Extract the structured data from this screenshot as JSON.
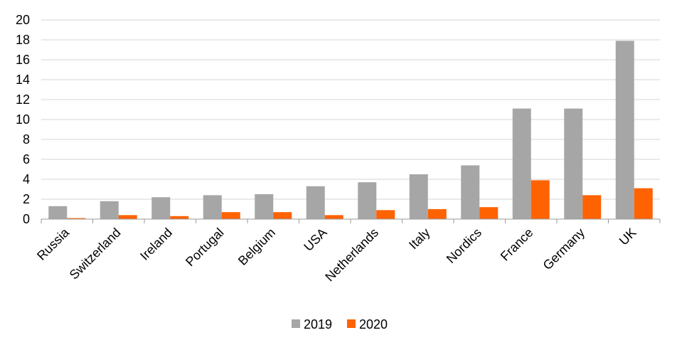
{
  "chart_data": {
    "type": "bar",
    "title": "",
    "xlabel": "",
    "ylabel": "",
    "ylim": [
      0,
      20
    ],
    "yticks": [
      0,
      2,
      4,
      6,
      8,
      10,
      12,
      14,
      16,
      18,
      20
    ],
    "ytick_labels": [
      "0",
      "2",
      "4",
      "6",
      "8",
      "10",
      "12",
      "14",
      "16",
      "18",
      "20"
    ],
    "grid": "horizontal",
    "legend_position": "bottom-center",
    "categories": [
      "Russia",
      "Switzerland",
      "Ireland",
      "Portugal",
      "Belgium",
      "USA",
      "Netherlands",
      "Italy",
      "Nordics",
      "France",
      "Germany",
      "UK"
    ],
    "series": [
      {
        "name": "2019",
        "color": "#a6a6a6",
        "values": [
          1.3,
          1.8,
          2.2,
          2.4,
          2.5,
          3.3,
          3.7,
          4.5,
          5.4,
          11.1,
          11.1,
          17.9
        ]
      },
      {
        "name": "2020",
        "color": "#ff6200",
        "values": [
          0.1,
          0.4,
          0.3,
          0.7,
          0.7,
          0.4,
          0.9,
          1.0,
          1.2,
          3.9,
          2.4,
          3.1
        ]
      }
    ]
  }
}
